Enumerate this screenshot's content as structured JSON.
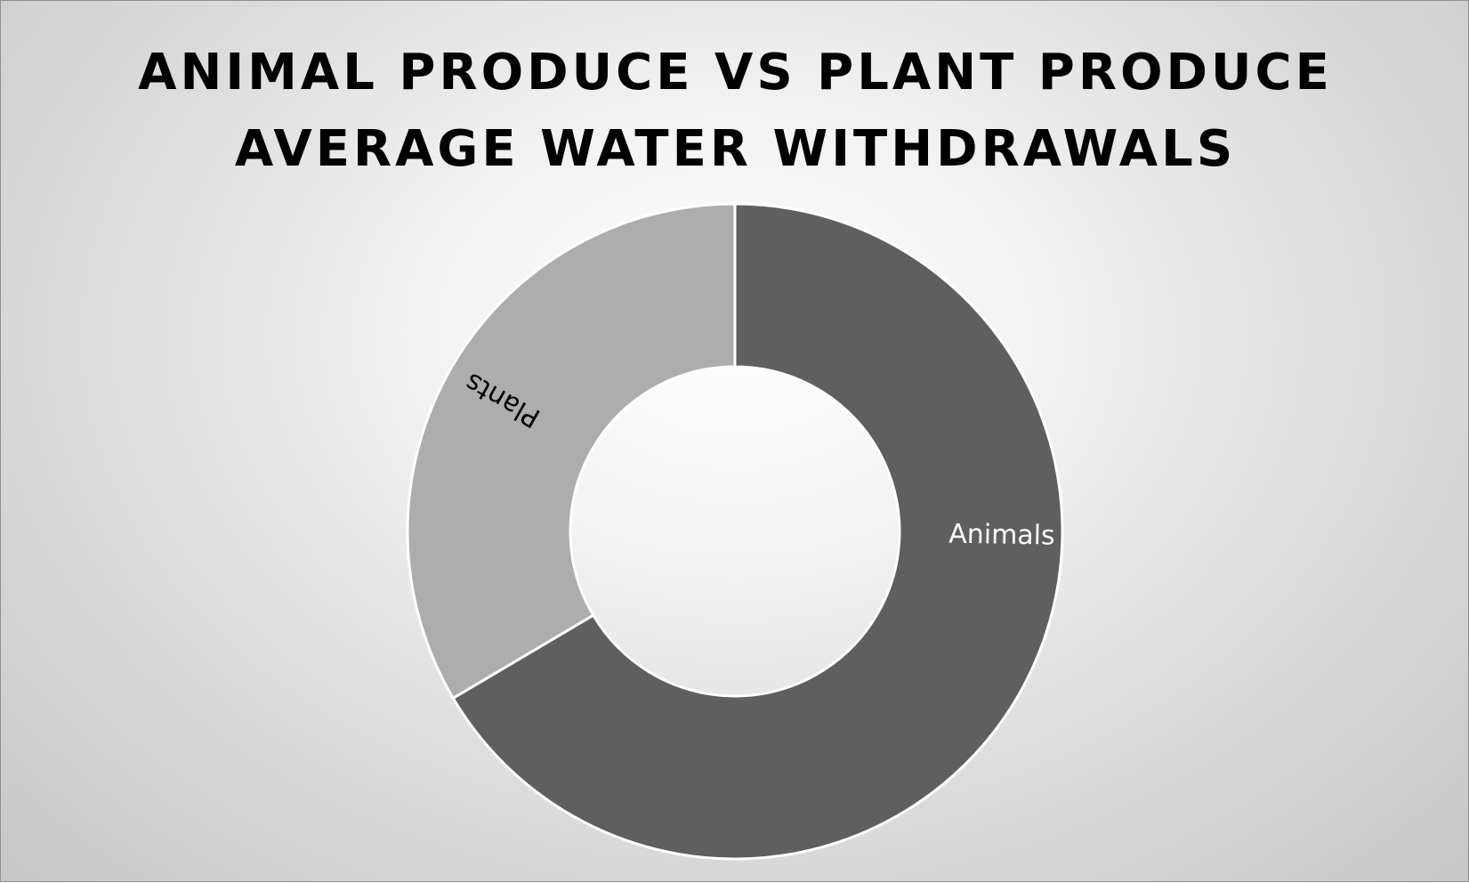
{
  "chart_data": {
    "type": "pie",
    "variant": "donut",
    "title_lines": [
      "ANIMAL PRODUCE VS PLANT PRODUCE",
      "AVERAGE WATER WITHDRAWALS"
    ],
    "title": "ANIMAL PRODUCE VS PLANT PRODUCE AVERAGE WATER WITHDRAWALS",
    "categories": [
      "Animals",
      "Plants"
    ],
    "values": [
      66.5,
      33.5
    ],
    "value_unit": "percent of total",
    "colors": [
      "#5f5f5f",
      "#adadad"
    ],
    "label_colors": [
      "#ffffff",
      "#000000"
    ],
    "start": "12 o'clock, clockwise",
    "legend": "none",
    "data_labels": "category name, rotated along slice"
  }
}
